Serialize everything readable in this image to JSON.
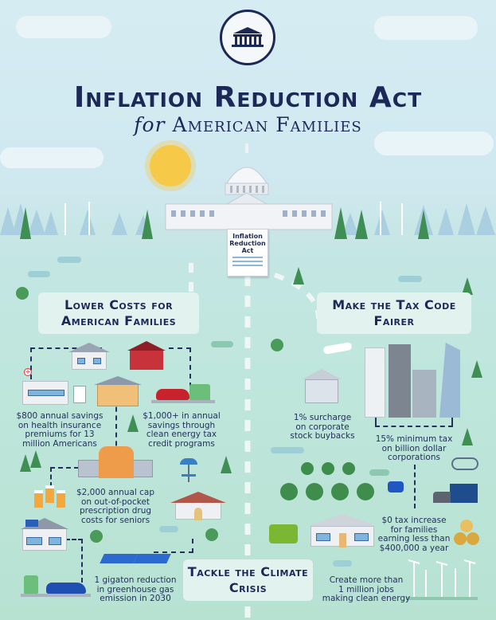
{
  "header": {
    "seal": "White House seal",
    "title": "Inflation Reduction Act",
    "subtitle_for": "for",
    "subtitle_rest": "American Families"
  },
  "document": {
    "line1": "Inflation",
    "line2": "Reduction",
    "line3": "Act"
  },
  "sections": {
    "lower_costs": "Lower Costs for American Families",
    "tax": "Make the Tax Code Fairer",
    "climate": "Tackle the Climate Crisis"
  },
  "captions": {
    "health": "$800 annual savings\non health insurance\npremiums for 13\nmillion Americans",
    "energy": "$1,000+ in annual\nsavings through\nclean energy tax\ncredit programs",
    "drugs": "$2,000 annual cap\non out-of-pocket\nprescription drug\ncosts for seniors",
    "gigaton": "1 gigaton reduction\nin greenhouse gas\nemission in 2030",
    "surcharge": "1% surcharge\non corporate\nstock buybacks",
    "min_tax": "15% minimum tax\non billion dollar\ncorporations",
    "zero_tax": "$0 tax increase\nfor families\nearning less than\n$400,000 a year",
    "jobs": "Create more than\n1 million jobs\nmaking clean energy"
  },
  "colors": {
    "navy": "#1c2957",
    "sky": "#d6ecf3",
    "mint": "#b7e2d2",
    "box": "#e2f2ee",
    "tree": "#3f8f55"
  }
}
